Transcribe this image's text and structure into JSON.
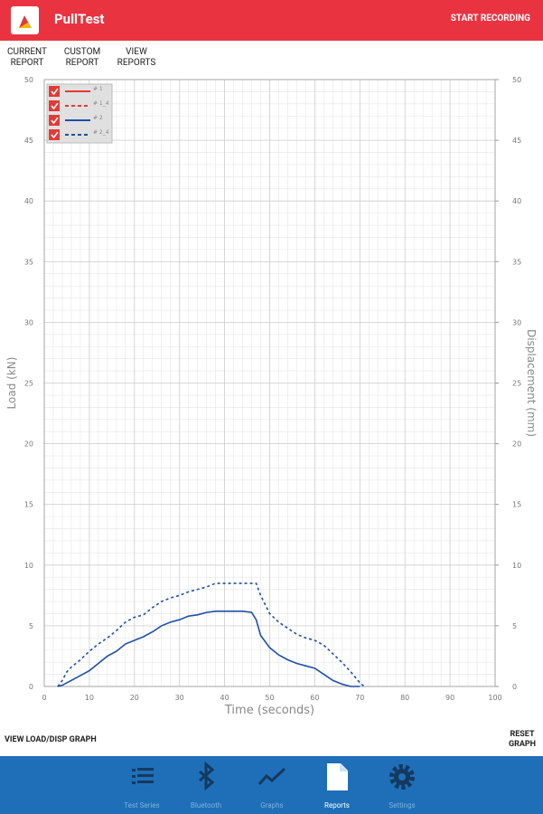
{
  "app_bar": {
    "title": "PullTest",
    "action": "START RECORDING"
  },
  "tabs": [
    "CURRENT REPORT",
    "CUSTOM REPORT",
    "VIEW REPORTS"
  ],
  "chart_data": {
    "type": "line",
    "x_label": "Time (seconds)",
    "y_label": "Load (kN)",
    "y2_label": "Displacement (mm)",
    "xlim": [
      0,
      100
    ],
    "xticks": [
      0,
      10,
      20,
      30,
      40,
      50,
      60,
      70,
      80,
      90,
      100
    ],
    "ylim": [
      0,
      50
    ],
    "yticks": [
      0,
      5,
      10,
      15,
      20,
      25,
      30,
      35,
      40,
      45,
      50
    ],
    "y2lim": [
      0,
      50
    ],
    "y2ticks": [
      0,
      5,
      10,
      15,
      20,
      25,
      30,
      35,
      40,
      45,
      50
    ],
    "grid": true,
    "legend": "top-left",
    "x": [
      3,
      4,
      5,
      6,
      8,
      10,
      12,
      14,
      16,
      18,
      20,
      22,
      24,
      26,
      28,
      30,
      32,
      34,
      36,
      38,
      40,
      42,
      44,
      46,
      47,
      48,
      50,
      52,
      54,
      56,
      58,
      60,
      62,
      64,
      66,
      68,
      70,
      71
    ],
    "series": [
      {
        "name": "# 1",
        "color": "#e53935",
        "line_style": "solid",
        "values": [
          null,
          null,
          null,
          null,
          null,
          null,
          null,
          null,
          null,
          null,
          null,
          null,
          null,
          null,
          null,
          null,
          null,
          null,
          null,
          null,
          null,
          null,
          null,
          null,
          null,
          null,
          null,
          null,
          null,
          null,
          null,
          null,
          null,
          null,
          null,
          null,
          null,
          null
        ]
      },
      {
        "name": "# 1_4",
        "color": "#e53935",
        "line_style": "dashed",
        "axis": "y2",
        "values": [
          null,
          null,
          null,
          null,
          null,
          null,
          null,
          null,
          null,
          null,
          null,
          null,
          null,
          null,
          null,
          null,
          null,
          null,
          null,
          null,
          null,
          null,
          null,
          null,
          null,
          null,
          null,
          null,
          null,
          null,
          null,
          null,
          null,
          null,
          null,
          null,
          null,
          null
        ]
      },
      {
        "name": "# 2",
        "color": "#1f4fa8",
        "line_style": "solid",
        "values": [
          0,
          0.1,
          0.3,
          0.5,
          0.9,
          1.3,
          1.9,
          2.5,
          2.9,
          3.5,
          3.8,
          4.1,
          4.5,
          5.0,
          5.3,
          5.5,
          5.8,
          5.9,
          6.1,
          6.2,
          6.2,
          6.2,
          6.2,
          6.1,
          5.5,
          4.2,
          3.2,
          2.6,
          2.2,
          1.9,
          1.7,
          1.5,
          1.0,
          0.5,
          0.2,
          0,
          0,
          null
        ]
      },
      {
        "name": "# 2_4",
        "color": "#1f4fa8",
        "line_style": "dashed",
        "axis": "y2",
        "values": [
          0,
          0.5,
          1.2,
          1.6,
          2.2,
          2.9,
          3.5,
          4.0,
          4.6,
          5.3,
          5.7,
          5.9,
          6.5,
          7.0,
          7.3,
          7.5,
          7.8,
          8.0,
          8.2,
          8.5,
          8.5,
          8.5,
          8.5,
          8.5,
          8.5,
          7.5,
          6.0,
          5.3,
          4.8,
          4.3,
          4.0,
          3.8,
          3.4,
          2.7,
          2.0,
          1.2,
          0.3,
          0
        ]
      }
    ]
  },
  "bottom_actions": {
    "left": "VIEW LOAD/DISP GRAPH",
    "right": "RESET GRAPH"
  },
  "nav": [
    "Test Series",
    "Bluetooth",
    "Graphs",
    "Reports",
    "Settings"
  ]
}
